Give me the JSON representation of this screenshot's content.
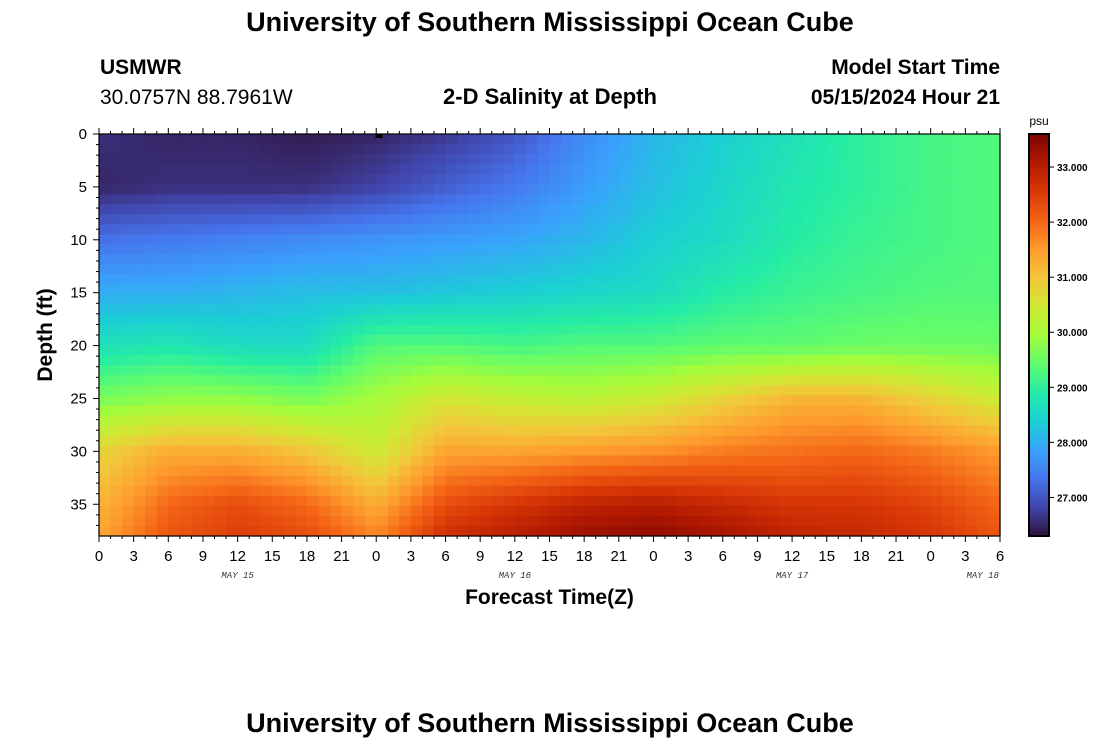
{
  "page": {
    "title": "University of Southern Mississippi Ocean Cube",
    "footer_title": "University of Southern Mississippi Ocean Cube",
    "station": "USMWR",
    "coords": "30.0757N  88.7961W",
    "subtitle": "2-D Salinity at Depth",
    "model_label": "Model Start Time",
    "model_time": "05/15/2024 Hour 21"
  },
  "chart_data": {
    "type": "heatmap",
    "title": "2-D Salinity at Depth",
    "xlabel": "Forecast Time(Z)",
    "ylabel": "Depth (ft)",
    "x_tick_labels": [
      "0",
      "3",
      "6",
      "9",
      "12",
      "15",
      "18",
      "21",
      "0",
      "3",
      "6",
      "9",
      "12",
      "15",
      "18",
      "21",
      "0",
      "3",
      "6",
      "9",
      "12",
      "15",
      "18",
      "21",
      "0",
      "3",
      "6"
    ],
    "x_hours_range": [
      0,
      78
    ],
    "day_labels": [
      "MAY 15",
      "MAY 16",
      "MAY 17",
      "MAY 18"
    ],
    "y_tick_labels": [
      "0",
      "5",
      "10",
      "15",
      "20",
      "25",
      "30",
      "35"
    ],
    "ylim": [
      0,
      38
    ],
    "colorbar": {
      "unit": "psu",
      "range": [
        26.3,
        33.6
      ],
      "tick_labels": [
        "27.000",
        "28.000",
        "29.000",
        "30.000",
        "31.000",
        "32.000",
        "33.000"
      ],
      "tick_values": [
        27,
        28,
        29,
        30,
        31,
        32,
        33
      ]
    },
    "colormap": [
      "#30123b",
      "#4145ab",
      "#4675ed",
      "#39a2fc",
      "#1bcfd4",
      "#24eca6",
      "#61fc6c",
      "#a4fc3b",
      "#d1e834",
      "#f3c63a",
      "#fe9b2d",
      "#f36315",
      "#d93806",
      "#b11901",
      "#7a0402"
    ],
    "time_hours": [
      0,
      6,
      12,
      18,
      24,
      30,
      36,
      42,
      48,
      54,
      60,
      66,
      72,
      78
    ],
    "depth_ft": [
      0,
      5,
      10,
      15,
      20,
      25,
      30,
      35,
      38
    ],
    "salinity_psu": [
      [
        26.6,
        26.5,
        26.5,
        26.4,
        26.5,
        26.7,
        27.0,
        27.6,
        28.1,
        28.4,
        28.7,
        29.0,
        29.2,
        29.3
      ],
      [
        26.5,
        26.6,
        26.6,
        26.6,
        26.8,
        27.1,
        27.4,
        27.8,
        28.2,
        28.5,
        28.8,
        29.0,
        29.2,
        29.3
      ],
      [
        27.3,
        27.4,
        27.5,
        27.6,
        27.7,
        27.8,
        27.9,
        28.1,
        28.4,
        28.6,
        28.9,
        29.1,
        29.2,
        29.3
      ],
      [
        28.0,
        28.0,
        28.1,
        28.2,
        28.2,
        28.3,
        28.4,
        28.5,
        28.6,
        28.9,
        29.1,
        29.2,
        29.3,
        29.3
      ],
      [
        28.7,
        28.8,
        28.6,
        28.6,
        29.3,
        29.3,
        29.2,
        29.3,
        29.3,
        29.4,
        29.4,
        29.5,
        29.5,
        29.5
      ],
      [
        29.6,
        29.8,
        29.8,
        29.6,
        30.0,
        30.5,
        30.3,
        30.2,
        30.4,
        30.8,
        31.2,
        31.2,
        30.8,
        30.4
      ],
      [
        30.8,
        31.3,
        31.3,
        31.0,
        30.4,
        31.4,
        31.4,
        31.5,
        31.6,
        31.8,
        31.9,
        32.0,
        31.8,
        31.5
      ],
      [
        31.2,
        32.0,
        32.3,
        32.0,
        31.3,
        32.3,
        32.6,
        32.9,
        33.0,
        32.8,
        32.6,
        32.6,
        32.4,
        32.0
      ],
      [
        31.4,
        32.2,
        32.5,
        32.3,
        31.7,
        32.7,
        33.0,
        33.3,
        33.4,
        33.2,
        32.9,
        32.8,
        32.6,
        32.2
      ]
    ]
  }
}
